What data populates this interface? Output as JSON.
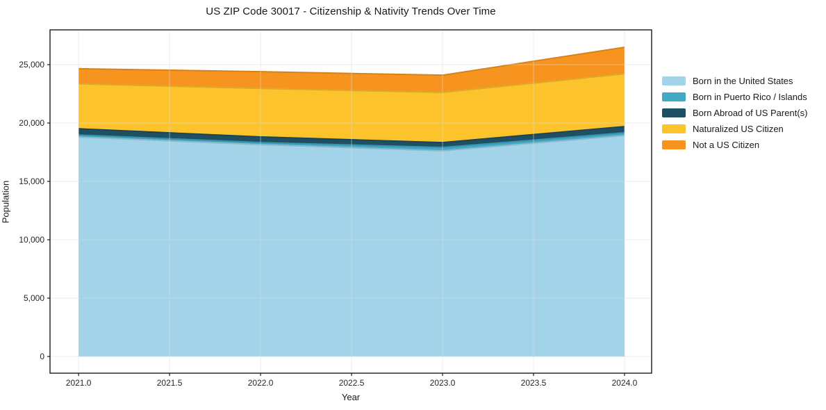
{
  "chart_data": {
    "type": "area",
    "stacked": true,
    "title": "US ZIP Code 30017 - Citizenship & Nativity Trends Over Time",
    "xlabel": "Year",
    "ylabel": "Population",
    "x": [
      2021,
      2022,
      2023,
      2024
    ],
    "series": [
      {
        "name": "Born in the United States",
        "color": "#a3d3e8",
        "values": [
          18800,
          18150,
          17620,
          18930
        ]
      },
      {
        "name": "Born in Puerto Rico / Islands",
        "color": "#41a9c6",
        "values": [
          180,
          180,
          290,
          240
        ]
      },
      {
        "name": "Born Abroad of US Parent(s)",
        "color": "#1f4f63",
        "values": [
          530,
          480,
          420,
          530
        ]
      },
      {
        "name": "Naturalized US Citizen",
        "color": "#fcc32d",
        "values": [
          3850,
          4150,
          4290,
          4520
        ]
      },
      {
        "name": "Not a US Citizen",
        "color": "#f7941f",
        "values": [
          1290,
          1440,
          1480,
          2270
        ]
      }
    ],
    "totals": [
      24650,
      24400,
      24100,
      26490
    ],
    "x_ticks": {
      "values": [
        2021.0,
        2021.5,
        2022.0,
        2022.5,
        2023.0,
        2023.5,
        2024.0
      ],
      "labels": [
        "2021.0",
        "2021.5",
        "2022.0",
        "2022.5",
        "2023.0",
        "2023.5",
        "2024.0"
      ]
    },
    "y_ticks": {
      "values": [
        0,
        5000,
        10000,
        15000,
        20000,
        25000
      ],
      "labels": [
        "0",
        "5,000",
        "10,000",
        "15,000",
        "20,000",
        "25,000"
      ]
    },
    "xlim": [
      2020.843,
      2024.149
    ],
    "ylim": [
      -1430,
      27980
    ],
    "grid": true,
    "legend_position": "right",
    "axis_color": "#1a1a1a",
    "grid_color": "#dcdcdc",
    "tick_label_color": "#262626"
  }
}
